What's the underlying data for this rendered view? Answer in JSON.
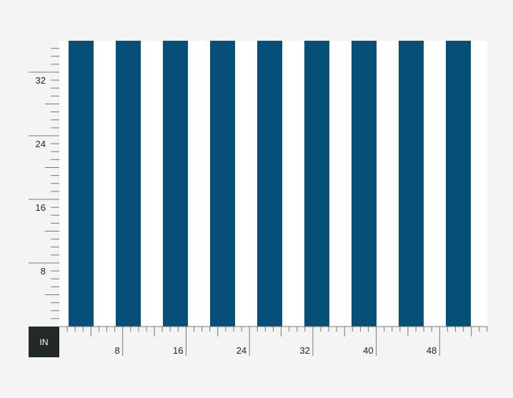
{
  "unit": "IN",
  "ruler": {
    "x_labels": [
      8,
      16,
      24,
      32,
      40,
      48
    ],
    "y_labels": [
      8,
      16,
      24,
      32
    ]
  }
}
